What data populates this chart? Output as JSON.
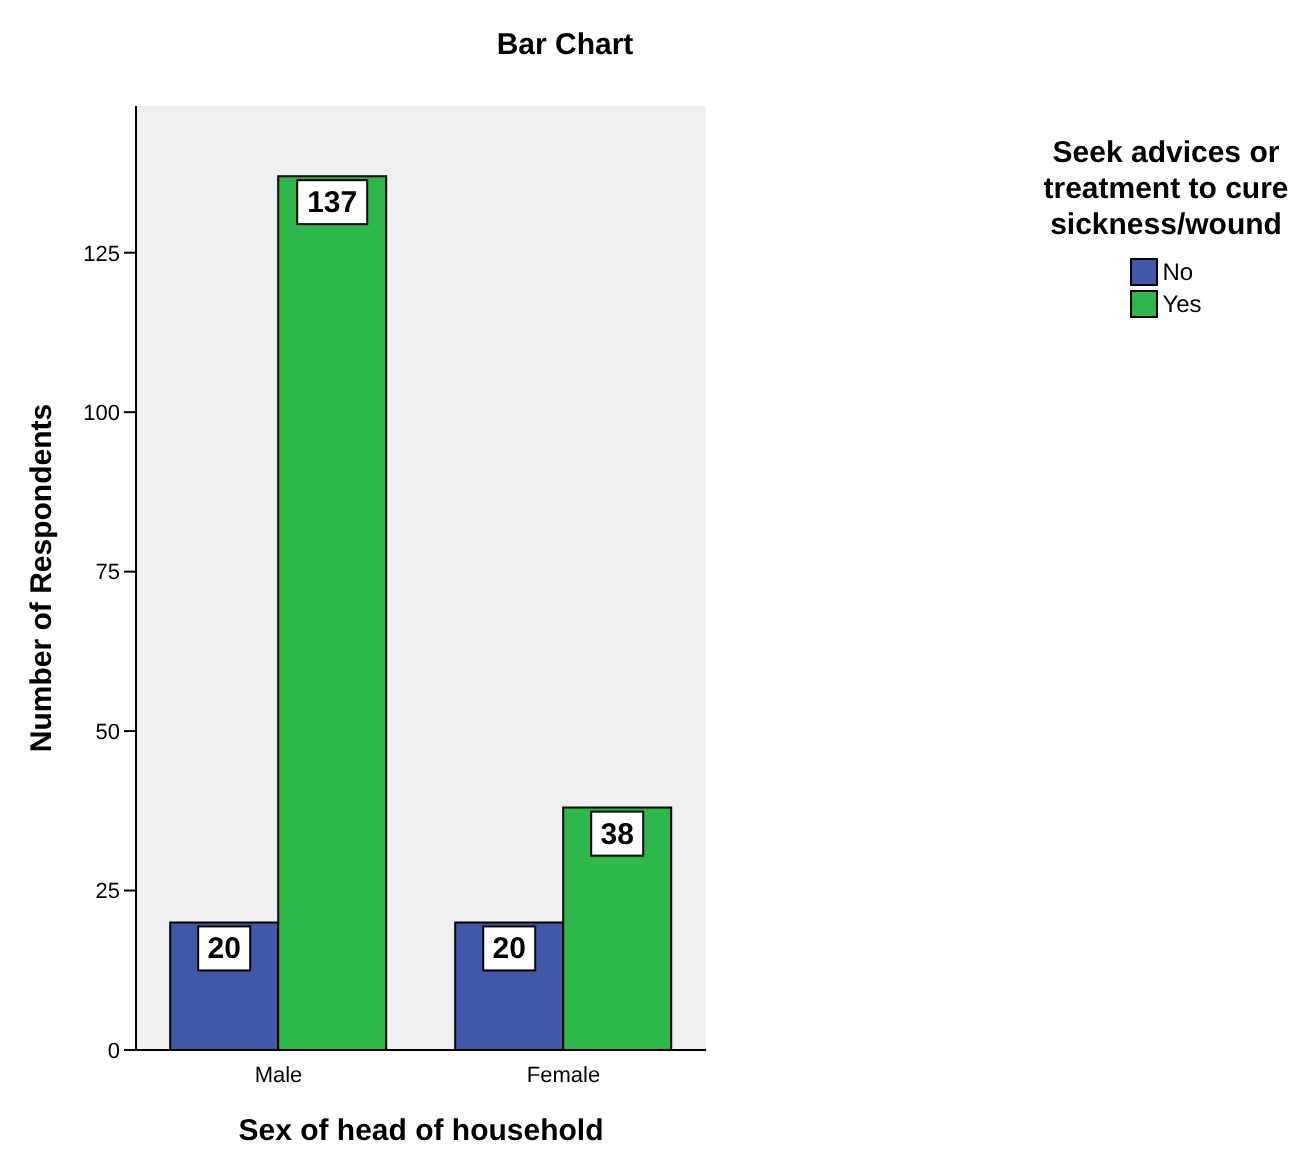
{
  "chart_data": {
    "type": "bar",
    "title": "Bar Chart",
    "xlabel": "Sex of head of household",
    "ylabel": "Number of Respondents",
    "legend_title": "Seek advices or treatment to cure sickness/wound",
    "categories": [
      "Male",
      "Female"
    ],
    "series": [
      {
        "name": "No",
        "color": "#3f58a8",
        "values": [
          20,
          20
        ]
      },
      {
        "name": "Yes",
        "color": "#2eb84b",
        "values": [
          137,
          38
        ]
      }
    ],
    "ylim": [
      0,
      148
    ],
    "yticks": [
      0,
      25,
      50,
      75,
      100,
      125
    ],
    "grid": false,
    "legend": "top right",
    "data_labels": true
  }
}
